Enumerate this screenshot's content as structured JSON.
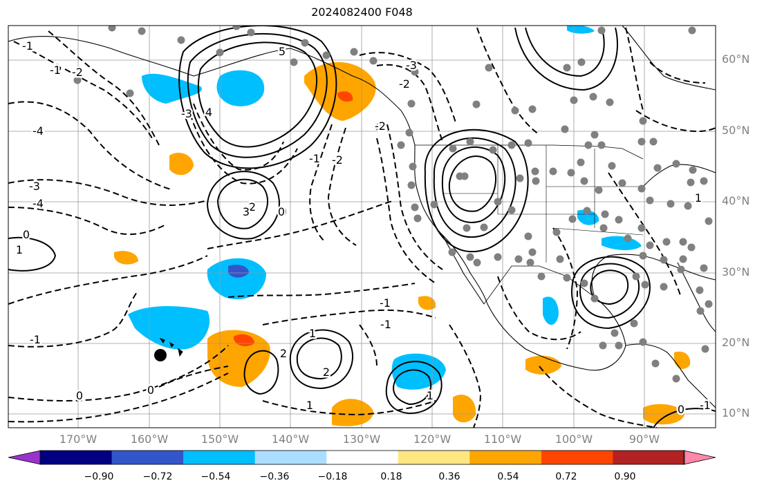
{
  "title": "2024082400 F048",
  "lat_labels": [
    "60°N",
    "50°N",
    "40°N",
    "30°N",
    "20°N",
    "10°N"
  ],
  "lon_labels": [
    "170°W",
    "160°W",
    "150°W",
    "140°W",
    "130°W",
    "120°W",
    "110°W",
    "100°W",
    "90°W"
  ],
  "colorbar": {
    "tick_labels": [
      "−0.90",
      "−0.72",
      "−0.54",
      "−0.36",
      "−0.18",
      "0.18",
      "0.36",
      "0.54",
      "0.72",
      "0.90"
    ],
    "colors": [
      "#9933cc",
      "#000080",
      "#3355cc",
      "#00bfff",
      "#aaddff",
      "#ffffff",
      "#ffe680",
      "#ffa500",
      "#ff4500",
      "#b22222",
      "#ff88aa"
    ]
  },
  "contour_labels": [
    "-1",
    "-2",
    "-3",
    "-4",
    "0",
    "1",
    "2",
    "3",
    "4",
    "5",
    "-1",
    "-2",
    "-3",
    "-4",
    "0",
    "-1",
    "1",
    "2",
    "-3",
    "-2",
    "-2",
    "-1",
    "0",
    "-1",
    "0",
    "2",
    "-1",
    "0",
    "1",
    "-2",
    "-1",
    "1",
    "0",
    "1"
  ],
  "style": {
    "line": "#000000",
    "grid": "#999999",
    "dot": "#808080",
    "land": "#000000"
  }
}
